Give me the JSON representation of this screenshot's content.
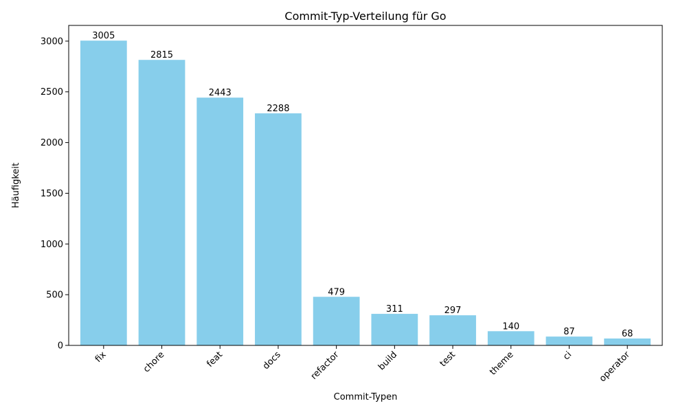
{
  "colors": {
    "bar": "#87ceeb",
    "axis": "#000000",
    "background": "#ffffff"
  },
  "chart_data": {
    "type": "bar",
    "title": "Commit-Typ-Verteilung für Go",
    "xlabel": "Commit-Typen",
    "ylabel": "Häufigkeit",
    "categories": [
      "fix",
      "chore",
      "feat",
      "docs",
      "refactor",
      "build",
      "test",
      "theme",
      "ci",
      "operator"
    ],
    "values": [
      3005,
      2815,
      2443,
      2288,
      479,
      311,
      297,
      140,
      87,
      68
    ],
    "ylim": [
      0,
      3155
    ],
    "yticks": [
      0,
      500,
      1000,
      1500,
      2000,
      2500,
      3000
    ],
    "grid": false,
    "legend": "none",
    "data_labels": true
  }
}
